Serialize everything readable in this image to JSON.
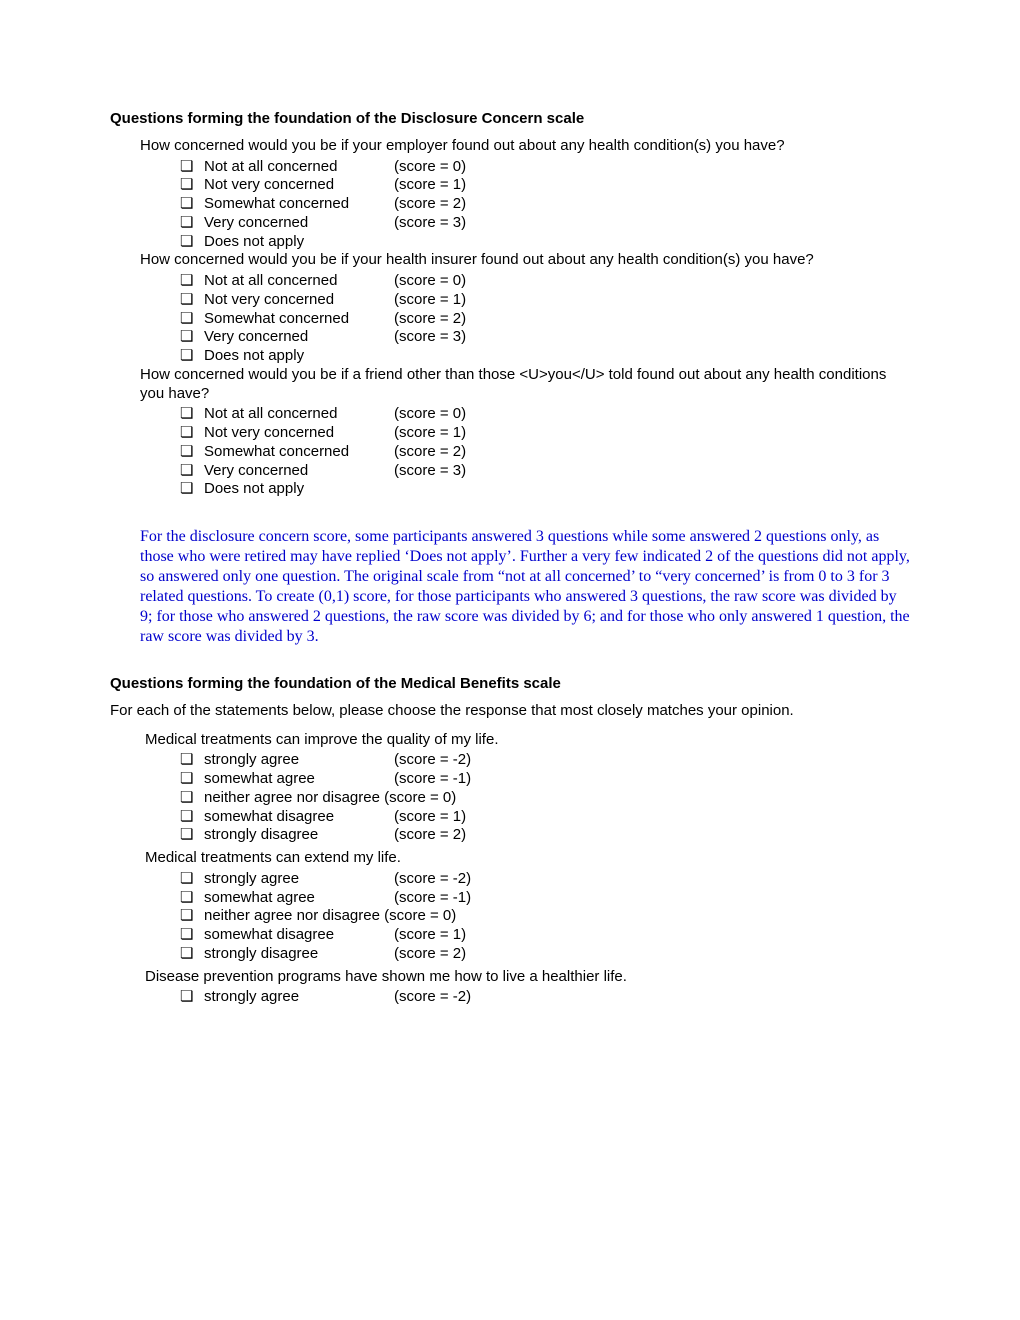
{
  "colors": {
    "note_color": "#0000cc",
    "text_color": "#000000",
    "background": "#ffffff"
  },
  "checkbox_glyph": "❏",
  "section1": {
    "heading": "Questions forming the foundation of the Disclosure Concern scale",
    "questions": [
      {
        "text": "How concerned would you be if your employer found out about any health condition(s) you have?"
      },
      {
        "text": "How concerned would you be if your health insurer found out about any health condition(s) you have?"
      },
      {
        "text": "How concerned would you be if a friend other than those <U>you</U> told found out about any health conditions you have?"
      }
    ],
    "options": [
      {
        "label": "Not at all concerned",
        "score": "(score = 0)"
      },
      {
        "label": "Not very concerned",
        "score": "(score = 1)"
      },
      {
        "label": "Somewhat concerned",
        "score": "(score = 2)"
      },
      {
        "label": "Very concerned",
        "score": "(score = 3)"
      },
      {
        "label": "Does not apply",
        "score": ""
      }
    ],
    "note": "For the disclosure concern score, some participants answered 3 questions while some answered 2 questions only, as those who were retired may have replied ‘Does not apply’. Further a very few indicated 2 of the questions did not apply, so answered only one question.  The original scale from “not at all concerned’ to “very concerned’ is from 0 to 3 for 3 related questions. To create (0,1) score, for those participants who answered 3 questions, the raw score was divided by 9; for those who answered 2 questions, the raw score was divided by 6; and for those who only answered 1 question, the raw score was divided by 3."
  },
  "section2": {
    "heading": "Questions forming the foundation of the Medical Benefits scale",
    "intro": "For each of the statements below, please choose the response that most closely matches your opinion.",
    "options": [
      {
        "label": "strongly agree",
        "score": "(score = -2)"
      },
      {
        "label": "somewhat agree",
        "score": "(score = -1)"
      },
      {
        "label": "neither agree nor disagree",
        "score": "(score = 0)",
        "inline": true
      },
      {
        "label": "somewhat disagree",
        "score": "(score =  1)"
      },
      {
        "label": "strongly disagree",
        "score": "(score =  2)"
      }
    ],
    "questions": [
      {
        "text": "Medical treatments can improve the quality of my life.",
        "options": "full"
      },
      {
        "text": "Medical treatments can extend my life.",
        "options": "full"
      },
      {
        "text": "Disease prevention programs have shown me how to live a healthier life.",
        "options": "first_only"
      }
    ]
  }
}
